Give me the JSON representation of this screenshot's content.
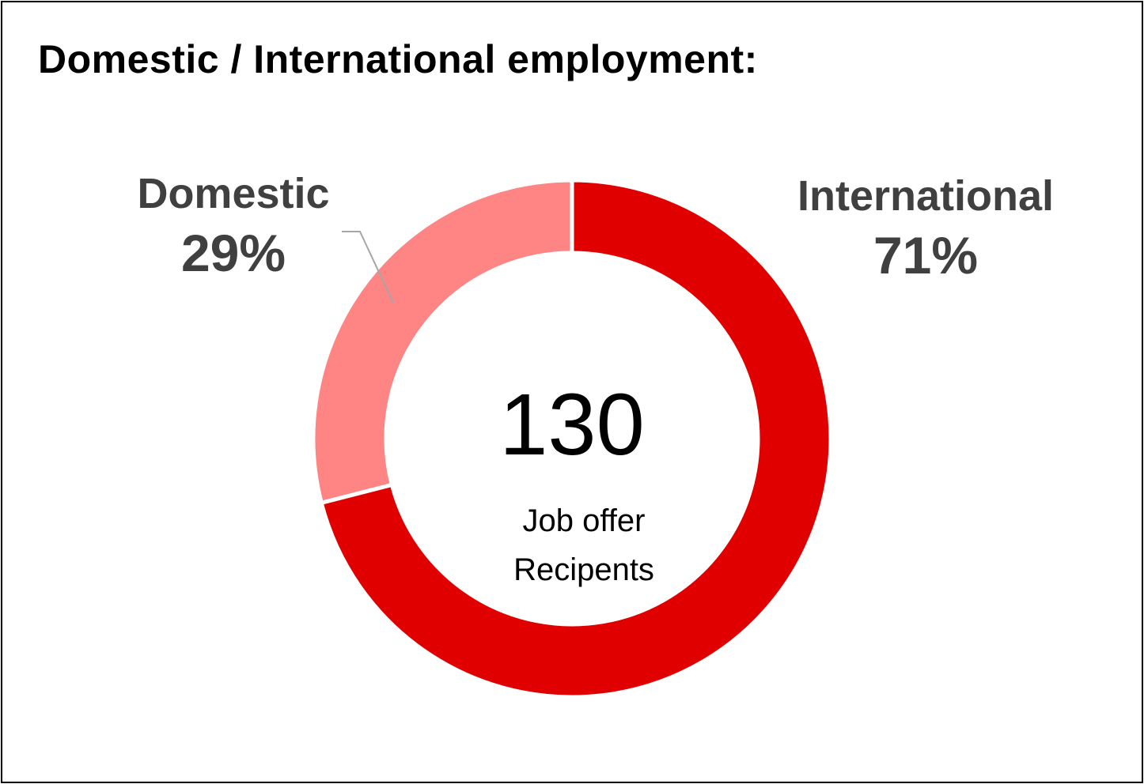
{
  "chart_data": {
    "type": "pie",
    "variant": "donut",
    "title": "Domestic / International employment:",
    "categories": [
      "Domestic",
      "International"
    ],
    "values": [
      29,
      71
    ],
    "value_labels": [
      "29%",
      "71%"
    ],
    "colors": [
      "#FF8585",
      "#E00000"
    ],
    "center_value": "130",
    "center_label": [
      "Job offer",
      "Recipents"
    ],
    "legend": "none"
  }
}
